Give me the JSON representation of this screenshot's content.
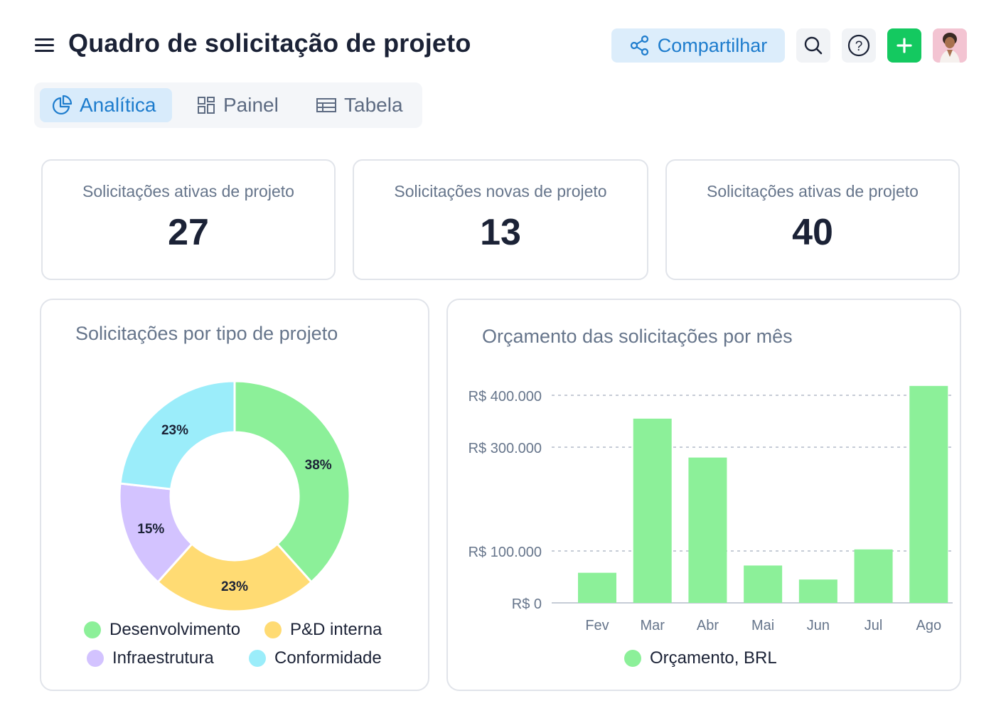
{
  "header": {
    "title": "Quadro de solicitação de projeto",
    "share_label": "Compartilhar",
    "icons": [
      "menu-icon",
      "share-icon",
      "search-icon",
      "help-icon",
      "plus-icon",
      "avatar"
    ]
  },
  "tabs": [
    {
      "label": "Analítica",
      "icon": "pie-chart-icon",
      "active": true
    },
    {
      "label": "Painel",
      "icon": "dashboard-icon",
      "active": false
    },
    {
      "label": "Tabela",
      "icon": "table-icon",
      "active": false
    }
  ],
  "kpis": [
    {
      "label": "Solicitações ativas de projeto",
      "value": "27"
    },
    {
      "label": "Solicitações novas de projeto",
      "value": "13"
    },
    {
      "label": "Solicitações ativas de projeto",
      "value": "40"
    }
  ],
  "colors": {
    "accent": "#1d7ccd",
    "add": "#14c960",
    "green": "#8cf099",
    "yellow": "#ffdb73",
    "purple": "#d3c3ff",
    "cyan": "#9bedfa"
  },
  "chart_data": [
    {
      "type": "pie",
      "title": "Solicitações por tipo de projeto",
      "slices": [
        {
          "label": "Desenvolvimento",
          "value": 38,
          "display": "38%",
          "color": "#8cf099"
        },
        {
          "label": "P&D interna",
          "value": 23,
          "display": "23%",
          "color": "#ffdb73"
        },
        {
          "label": "Infraestrutura",
          "value": 15,
          "display": "15%",
          "color": "#d3c3ff"
        },
        {
          "label": "Conformidade",
          "value": 23,
          "display": "23%",
          "color": "#9bedfa"
        }
      ],
      "legend": "bottom"
    },
    {
      "type": "bar",
      "title": "Orçamento das solicitações por mês",
      "categories": [
        "Fev",
        "Mar",
        "Abr",
        "Mai",
        "Jun",
        "Jul",
        "Ago"
      ],
      "series": [
        {
          "name": "Orçamento, BRL",
          "values": [
            58000,
            355000,
            280000,
            72000,
            45000,
            103000,
            418000
          ],
          "color": "#8cf099"
        }
      ],
      "yticks": [
        {
          "value": 0,
          "label": "R$ 0"
        },
        {
          "value": 100000,
          "label": "R$ 100.000"
        },
        {
          "value": 300000,
          "label": "R$ 300.000"
        },
        {
          "value": 400000,
          "label": "R$ 400.000"
        }
      ],
      "ylim": [
        0,
        400000
      ],
      "grid": true,
      "legend": "bottom"
    }
  ]
}
